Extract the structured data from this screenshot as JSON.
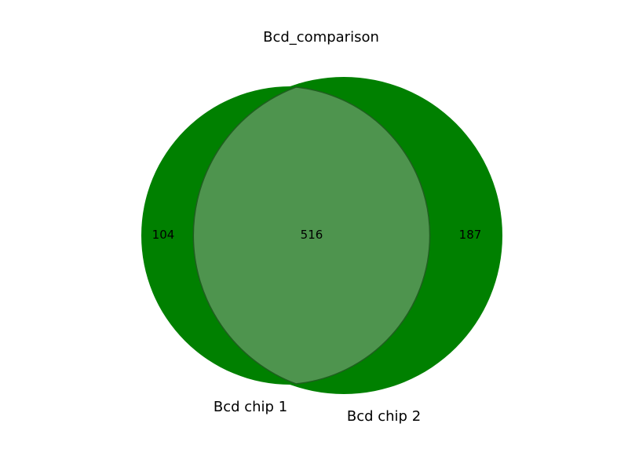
{
  "chart_data": {
    "type": "venn",
    "title": "Bcd_comparison",
    "sets": [
      {
        "name": "Bcd chip 1",
        "only_count": "104"
      },
      {
        "name": "Bcd chip 2",
        "only_count": "187"
      }
    ],
    "intersection_count": "516",
    "colors": {
      "set_fill": "#008000",
      "overlap_fill": "#4e944e",
      "overlap_edge": "#1f5f1f"
    }
  }
}
